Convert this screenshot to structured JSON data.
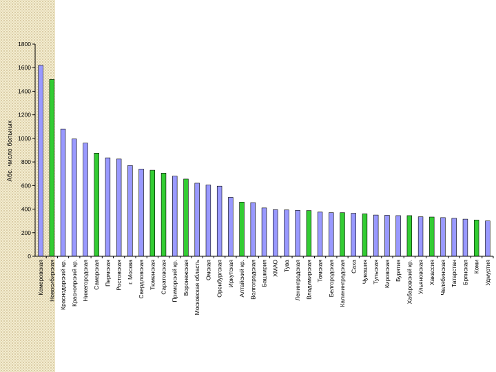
{
  "chart_data": {
    "type": "bar",
    "title": "",
    "xlabel": "",
    "ylabel": "Абс. число больных",
    "ylim": [
      0,
      1800
    ],
    "yticks": [
      0,
      200,
      400,
      600,
      800,
      1000,
      1200,
      1400,
      1600,
      1800
    ],
    "grid": false,
    "legend": "none",
    "colors": {
      "default": "#9999ff",
      "highlight": "#33cc33",
      "outline": "#000000"
    },
    "categories": [
      "Кемеровская",
      "Новосибирская",
      "Краснодарский кр.",
      "Красноярский кр.",
      "Нижегородская",
      "Самарская",
      "Пермская",
      "Ростовская",
      "г. Москва",
      "Свердловская",
      "Тюменская",
      "Саратовская",
      "Приморский кр.",
      "Воронежская",
      "Московская область",
      "Омская",
      "Оренбургская",
      "Иркутская",
      "Алтайский кр.",
      "Волгоградская",
      "Башкирия",
      "ХМАО",
      "Тува",
      "Ленинградская",
      "Владимирская",
      "Томская",
      "Белгородская",
      "Калининградская",
      "Саха",
      "Чувашия",
      "Тульская",
      "Кировская",
      "Бурятия",
      "Хабаровский кр.",
      "Ульяновская",
      "Хакассия",
      "Челябинская",
      "Татарстан",
      "Брянская",
      "Коми",
      "Удмуртия"
    ],
    "values": [
      1620,
      1500,
      1080,
      995,
      960,
      875,
      835,
      825,
      770,
      740,
      730,
      705,
      680,
      655,
      620,
      605,
      595,
      500,
      460,
      455,
      410,
      395,
      393,
      390,
      388,
      375,
      370,
      370,
      365,
      360,
      350,
      348,
      345,
      345,
      335,
      333,
      328,
      322,
      315,
      308,
      300
    ],
    "highlight": [
      false,
      true,
      false,
      false,
      false,
      true,
      false,
      false,
      false,
      false,
      true,
      true,
      false,
      true,
      false,
      false,
      false,
      false,
      true,
      false,
      false,
      false,
      false,
      false,
      true,
      false,
      false,
      true,
      false,
      true,
      false,
      false,
      false,
      true,
      false,
      true,
      false,
      false,
      false,
      true,
      false
    ]
  }
}
